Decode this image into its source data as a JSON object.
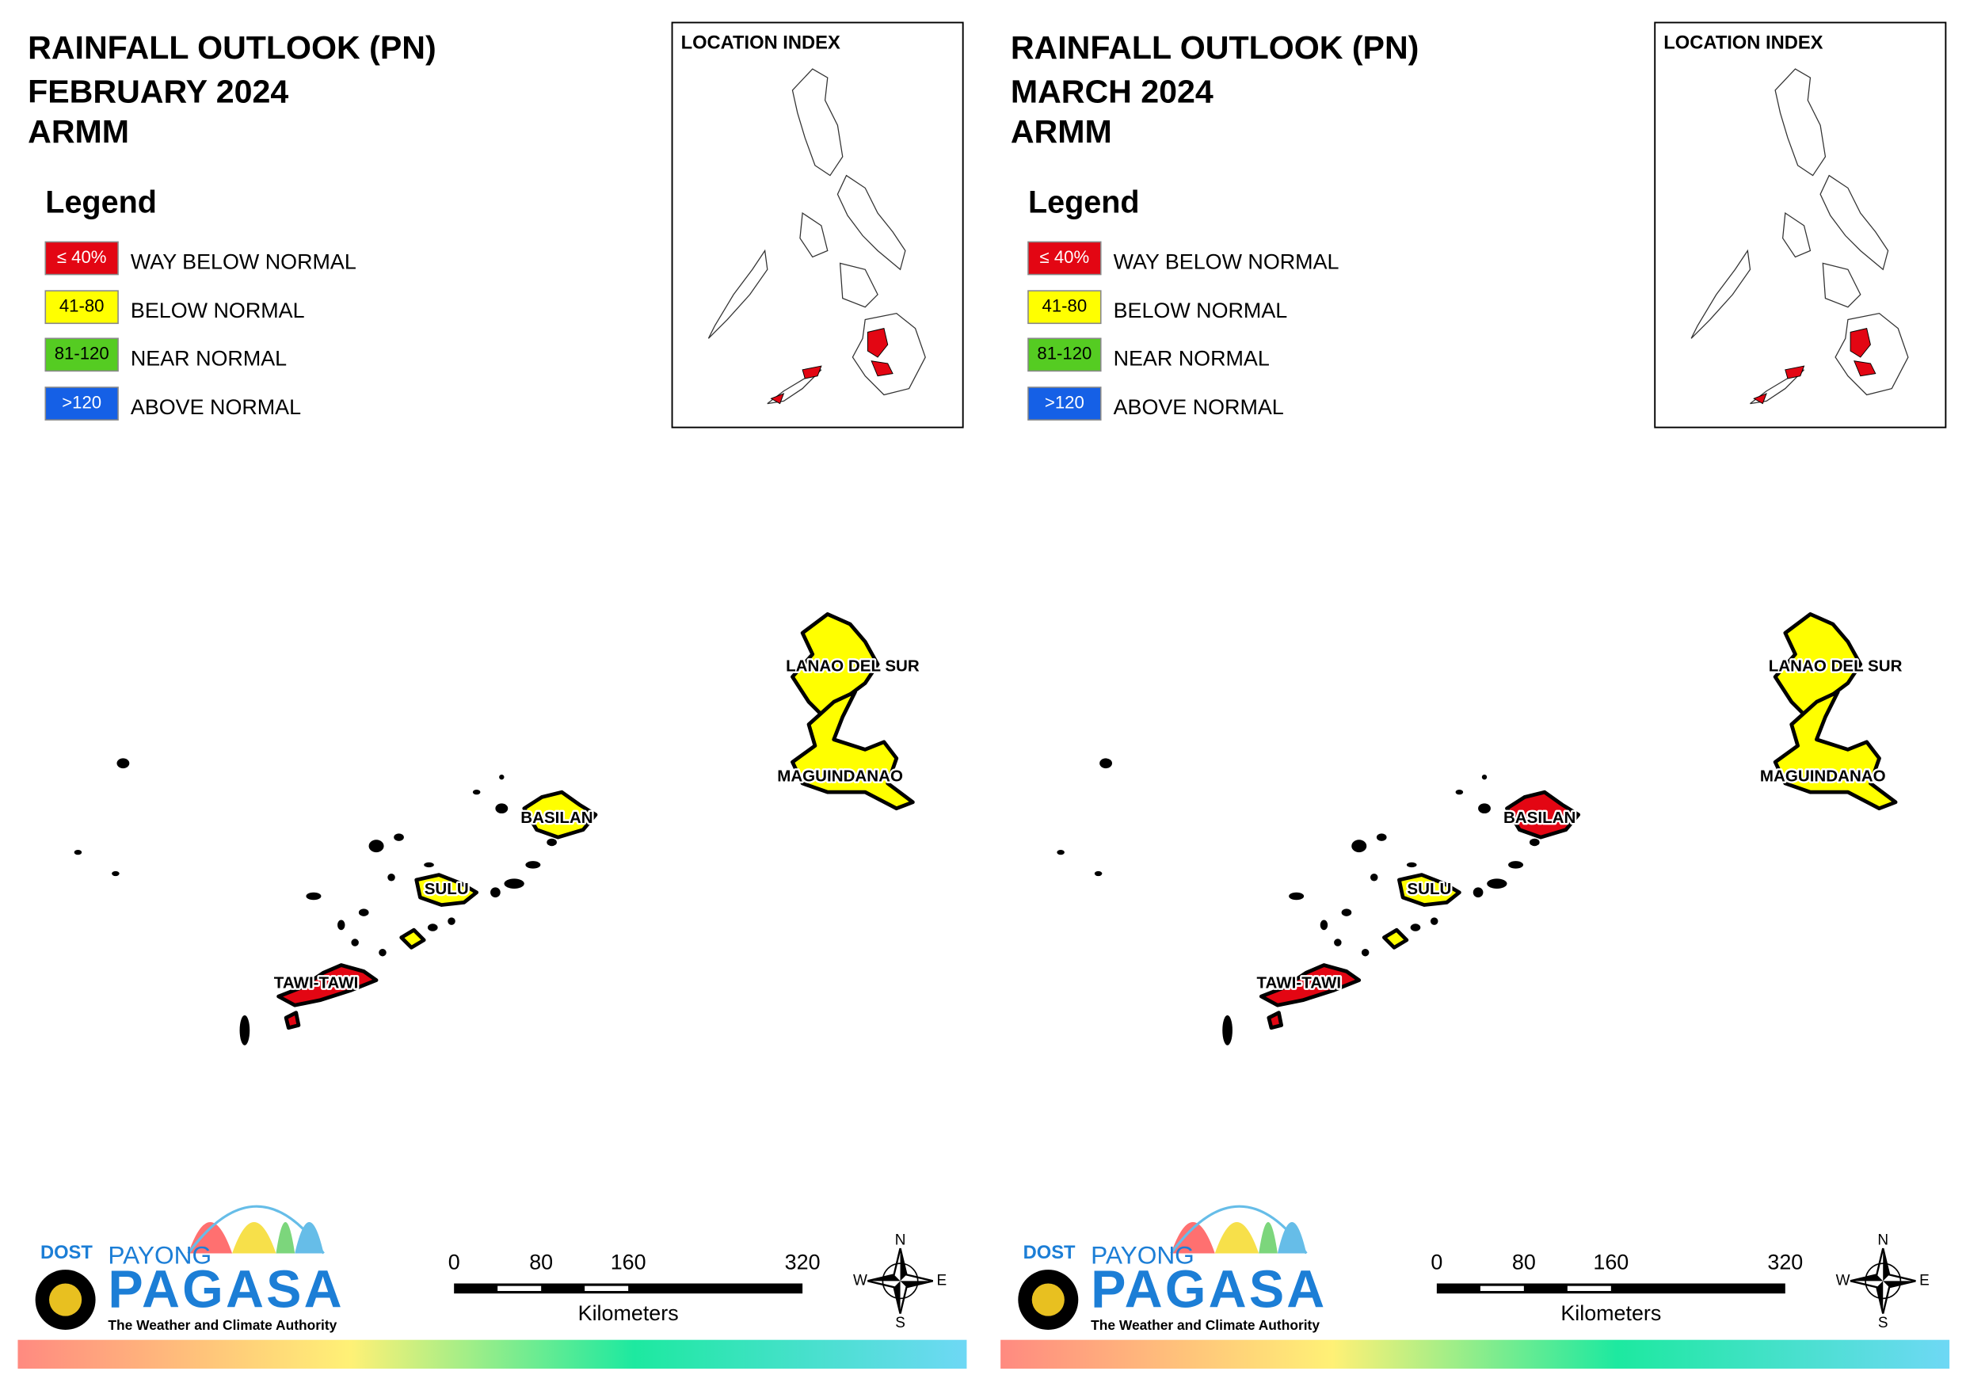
{
  "panels": [
    {
      "title": [
        "RAINFALL OUTLOOK (PN)",
        "FEBRUARY 2024",
        "ARMM"
      ],
      "legend_title": "Legend",
      "legend": [
        {
          "swatch": "≤ 40%",
          "label": "WAY BELOW NORMAL",
          "color": "#e30613"
        },
        {
          "swatch": "41-80",
          "label": "BELOW NORMAL",
          "color": "#ffff00"
        },
        {
          "swatch": "81-120",
          "label": "NEAR NORMAL",
          "color": "#55cc22"
        },
        {
          "swatch": ">120",
          "label": "ABOVE NORMAL",
          "color": "#1560e6"
        }
      ],
      "location_index": "LOCATION INDEX",
      "provinces": [
        {
          "name": "LANAO DEL SUR",
          "fill": "#ffff00"
        },
        {
          "name": "MAGUINDANAO",
          "fill": "#ffff00"
        },
        {
          "name": "BASILAN",
          "fill": "#ffff00"
        },
        {
          "name": "SULU",
          "fill": "#ffff00"
        },
        {
          "name": "TAWI-TAWI",
          "fill": "#e30613"
        }
      ],
      "scale": {
        "ticks": [
          0,
          80,
          160,
          320
        ],
        "unit": "Kilometers"
      },
      "compass": {
        "n": "N",
        "e": "E",
        "s": "S",
        "w": "W"
      },
      "logo": {
        "agency": "DOST",
        "line1": "PAYONG",
        "line2": "PAGASA",
        "tagline": "The Weather and Climate Authority"
      }
    },
    {
      "title": [
        "RAINFALL OUTLOOK (PN)",
        "MARCH 2024",
        "ARMM"
      ],
      "legend_title": "Legend",
      "legend": [
        {
          "swatch": "≤ 40%",
          "label": "WAY BELOW NORMAL",
          "color": "#e30613"
        },
        {
          "swatch": "41-80",
          "label": "BELOW NORMAL",
          "color": "#ffff00"
        },
        {
          "swatch": "81-120",
          "label": "NEAR NORMAL",
          "color": "#55cc22"
        },
        {
          "swatch": ">120",
          "label": "ABOVE NORMAL",
          "color": "#1560e6"
        }
      ],
      "location_index": "LOCATION INDEX",
      "provinces": [
        {
          "name": "LANAO DEL SUR",
          "fill": "#ffff00"
        },
        {
          "name": "MAGUINDANAO",
          "fill": "#ffff00"
        },
        {
          "name": "BASILAN",
          "fill": "#e30613"
        },
        {
          "name": "SULU",
          "fill": "#ffff00"
        },
        {
          "name": "TAWI-TAWI",
          "fill": "#e30613"
        }
      ],
      "scale": {
        "ticks": [
          0,
          80,
          160,
          320
        ],
        "unit": "Kilometers"
      },
      "compass": {
        "n": "N",
        "e": "E",
        "s": "S",
        "w": "W"
      },
      "logo": {
        "agency": "DOST",
        "line1": "PAYONG",
        "line2": "PAGASA",
        "tagline": "The Weather and Climate Authority"
      }
    }
  ]
}
